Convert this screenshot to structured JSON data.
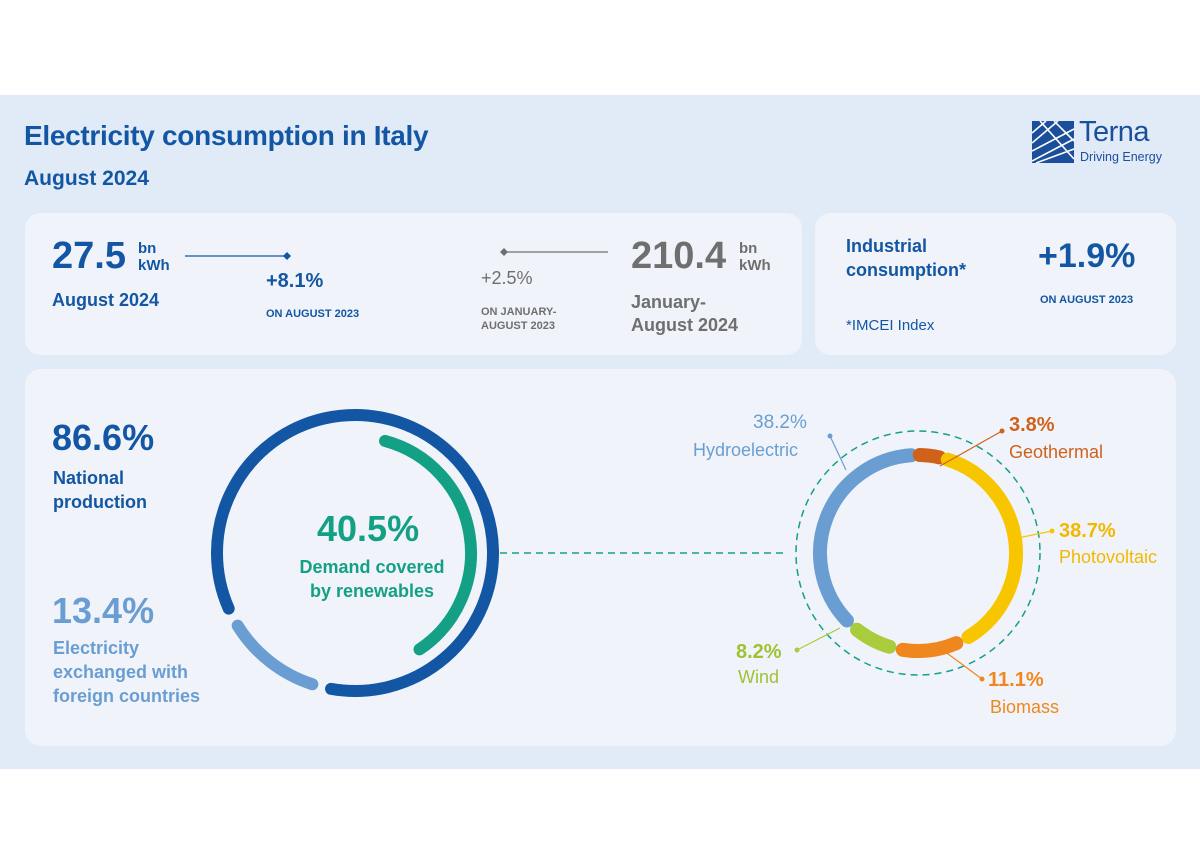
{
  "header": {
    "title": "Electricity consumption in Italy",
    "period": "August 2024",
    "logo_name": "Terna",
    "logo_tagline": "Driving Energy"
  },
  "stats": {
    "monthly": {
      "value": "27.5",
      "unit_top": "bn",
      "unit_bottom": "kWh",
      "label": "August 2024",
      "change": "+8.1%",
      "change_ref": "ON AUGUST 2023"
    },
    "ytd": {
      "value": "210.4",
      "unit_top": "bn",
      "unit_bottom": "kWh",
      "label_line1": "January-",
      "label_line2": "August 2024",
      "change": "+2.5%",
      "change_ref_line1": "ON JANUARY-",
      "change_ref_line2": "AUGUST 2023"
    },
    "industrial": {
      "label_line1": "Industrial",
      "label_line2": "consumption*",
      "change": "+1.9%",
      "change_ref": "ON AUGUST 2023",
      "footnote": "*IMCEI Index"
    }
  },
  "colors": {
    "navy": "#1356a3",
    "light_blue": "#6a9ed2",
    "teal": "#14a085",
    "hydro": "#6a9ed2",
    "geothermal": "#d0611a",
    "photovoltaic": "#f7c600",
    "wind": "#a9cc3c",
    "biomass": "#f0871e"
  },
  "chart_data": [
    {
      "type": "pie",
      "title": "",
      "slices": [
        {
          "name": "National production",
          "value": 86.6,
          "label": "86.6%",
          "text_line1": "National",
          "text_line2": "production"
        },
        {
          "name": "Electricity exchanged with foreign countries",
          "value": 13.4,
          "label": "13.4%",
          "text_line1": "Electricity",
          "text_line2": "exchanged with",
          "text_line3": "foreign countries"
        }
      ],
      "inner": {
        "value": 40.5,
        "label": "40.5%",
        "text_line1": "Demand covered",
        "text_line2": "by renewables"
      }
    },
    {
      "type": "pie",
      "title": "",
      "slices": [
        {
          "name": "Hydroelectric",
          "value": 38.2,
          "label": "38.2%"
        },
        {
          "name": "Geothermal",
          "value": 3.8,
          "label": "3.8%"
        },
        {
          "name": "Photovoltaic",
          "value": 38.7,
          "label": "38.7%"
        },
        {
          "name": "Biomass",
          "value": 11.1,
          "label": "11.1%"
        },
        {
          "name": "Wind",
          "value": 8.2,
          "label": "8.2%"
        }
      ]
    }
  ]
}
